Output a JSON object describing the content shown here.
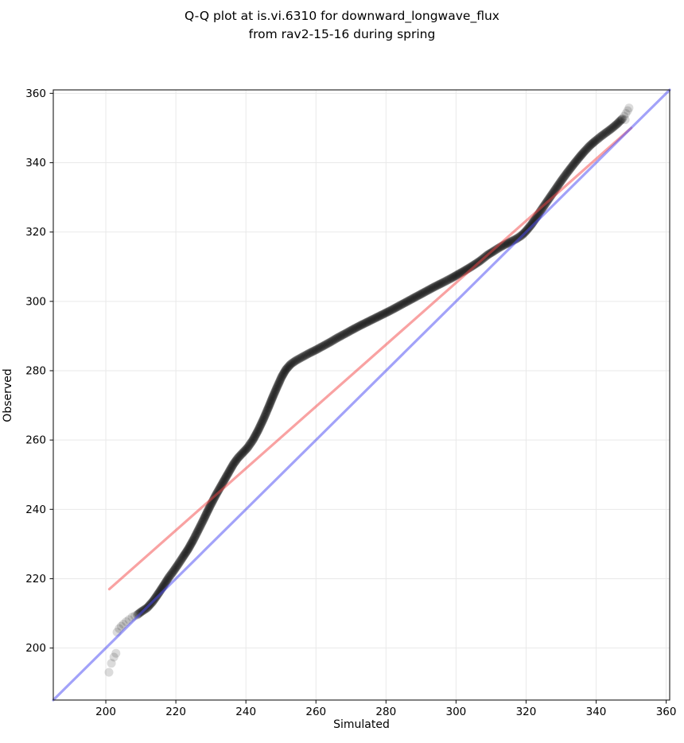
{
  "title": {
    "line1": "Q-Q plot at is.vi.6310 for downward_longwave_flux",
    "line2": "from rav2-15-16 during spring"
  },
  "chart_data": {
    "type": "scatter",
    "title": "Q-Q plot at is.vi.6310 for downward_longwave_flux from rav2-15-16 during spring",
    "xlabel": "Simulated",
    "ylabel": "Observed",
    "xlim": [
      185,
      361
    ],
    "ylim": [
      185,
      361
    ],
    "xticks": [
      200,
      220,
      240,
      260,
      280,
      300,
      320,
      340,
      360
    ],
    "yticks": [
      200,
      220,
      240,
      260,
      280,
      300,
      320,
      340,
      360
    ],
    "grid": true,
    "grid_color": "#e9e9e9",
    "legend": "none",
    "identity_line": {
      "name": "identity y=x",
      "from": [
        185,
        185
      ],
      "to": [
        361,
        361
      ],
      "color": "#4d4df4",
      "opacity": 0.52,
      "width": 3.2
    },
    "fit_line": {
      "name": "qq fit line",
      "from": [
        201,
        217
      ],
      "to": [
        350,
        350
      ],
      "color": "#f44646",
      "opacity": 0.5,
      "width": 3.2
    },
    "points_style": {
      "color": "#000000",
      "radius": 5.5,
      "chain_alpha": 0.2,
      "outlier_alpha": 0.14
    },
    "qq_points": [
      [
        209.0,
        209.6
      ],
      [
        210.0,
        210.4
      ],
      [
        211.8,
        211.6
      ],
      [
        213.4,
        213.4
      ],
      [
        215.0,
        215.7
      ],
      [
        216.5,
        218.0
      ],
      [
        218.0,
        220.4
      ],
      [
        219.4,
        222.3
      ],
      [
        220.7,
        224.2
      ],
      [
        222.0,
        226.2
      ],
      [
        223.5,
        228.5
      ],
      [
        225.0,
        231.2
      ],
      [
        226.5,
        234.2
      ],
      [
        228.0,
        237.2
      ],
      [
        229.5,
        240.4
      ],
      [
        231.4,
        244.1
      ],
      [
        233.3,
        247.5
      ],
      [
        235.0,
        250.5
      ],
      [
        236.4,
        253.0
      ],
      [
        237.7,
        254.8
      ],
      [
        239.0,
        256.2
      ],
      [
        240.5,
        257.8
      ],
      [
        242.0,
        260.0
      ],
      [
        243.5,
        262.8
      ],
      [
        245.0,
        266.0
      ],
      [
        246.4,
        269.3
      ],
      [
        247.7,
        272.5
      ],
      [
        249.0,
        275.5
      ],
      [
        250.2,
        278.2
      ],
      [
        251.4,
        280.3
      ],
      [
        252.8,
        281.9
      ],
      [
        254.4,
        283.0
      ],
      [
        256.2,
        284.0
      ],
      [
        258.0,
        285.0
      ],
      [
        260.0,
        286.0
      ],
      [
        262.0,
        287.1
      ],
      [
        264.0,
        288.2
      ],
      [
        266.0,
        289.4
      ],
      [
        268.0,
        290.5
      ],
      [
        270.0,
        291.6
      ],
      [
        272.2,
        292.8
      ],
      [
        274.4,
        293.9
      ],
      [
        276.6,
        295.0
      ],
      [
        278.8,
        296.1
      ],
      [
        281.0,
        297.2
      ],
      [
        283.2,
        298.4
      ],
      [
        285.4,
        299.6
      ],
      [
        287.6,
        300.8
      ],
      [
        289.8,
        302.0
      ],
      [
        292.0,
        303.2
      ],
      [
        294.2,
        304.4
      ],
      [
        296.4,
        305.5
      ],
      [
        298.5,
        306.6
      ],
      [
        300.6,
        307.8
      ],
      [
        302.7,
        309.0
      ],
      [
        304.8,
        310.3
      ],
      [
        306.9,
        311.7
      ],
      [
        309.0,
        313.4
      ],
      [
        310.8,
        314.5
      ],
      [
        312.5,
        315.6
      ],
      [
        314.2,
        316.5
      ],
      [
        315.8,
        317.3
      ],
      [
        317.3,
        318.1
      ],
      [
        318.7,
        319.0
      ],
      [
        320.0,
        320.3
      ],
      [
        321.4,
        322.0
      ],
      [
        322.8,
        324.0
      ],
      [
        324.2,
        326.2
      ],
      [
        325.7,
        328.4
      ],
      [
        327.2,
        330.6
      ],
      [
        328.7,
        332.8
      ],
      [
        330.2,
        335.0
      ],
      [
        331.8,
        337.2
      ],
      [
        333.4,
        339.3
      ],
      [
        335.0,
        341.3
      ],
      [
        336.6,
        343.2
      ],
      [
        338.2,
        344.9
      ],
      [
        339.8,
        346.3
      ],
      [
        341.4,
        347.6
      ],
      [
        343.0,
        348.8
      ],
      [
        344.6,
        350.0
      ],
      [
        346.1,
        351.3
      ],
      [
        347.5,
        352.7
      ]
    ],
    "outlier_points": [
      [
        200.9,
        193.0
      ],
      [
        201.6,
        195.6
      ],
      [
        202.3,
        197.4
      ],
      [
        202.9,
        198.5
      ],
      [
        203.2,
        204.6
      ],
      [
        203.8,
        205.6
      ],
      [
        204.4,
        206.3
      ],
      [
        205.0,
        206.9
      ],
      [
        205.8,
        207.6
      ],
      [
        206.6,
        208.2
      ],
      [
        207.5,
        208.9
      ],
      [
        208.3,
        209.3
      ],
      [
        348.3,
        352.4
      ],
      [
        348.0,
        353.4
      ],
      [
        348.5,
        354.2
      ],
      [
        349.0,
        355.0
      ],
      [
        349.4,
        355.8
      ]
    ]
  }
}
